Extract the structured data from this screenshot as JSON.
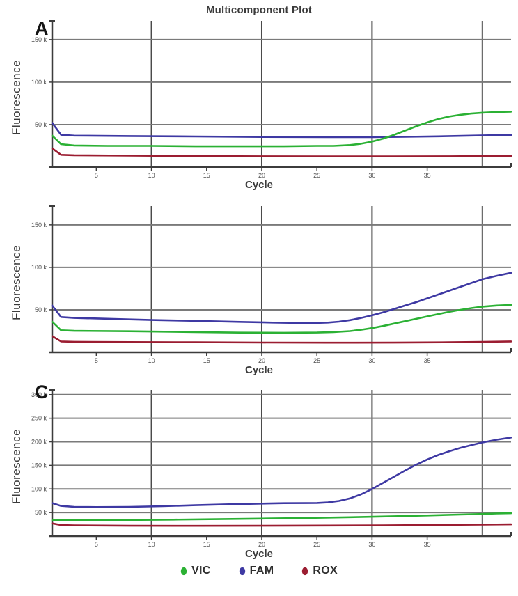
{
  "title": "Multicomponent Plot",
  "colors": {
    "vic": "#2bb134",
    "fam": "#3e39a3",
    "rox": "#9b1d31",
    "grid_h": "#7a7a7a",
    "grid_v": "#4a4a4a",
    "axis": "#3c3c3c",
    "tick_text": "#4e4e4e"
  },
  "panels": [
    {
      "letter": "A",
      "y_title": "Fluorescence",
      "x_title": "Cycle"
    },
    {
      "letter": "",
      "y_title": "Fluorescence",
      "x_title": "Cycle"
    },
    {
      "letter": "C",
      "y_title": "Fluorescence",
      "x_title": "Cycle"
    }
  ],
  "legend": {
    "items": [
      {
        "label": "VIC",
        "color_key": "vic"
      },
      {
        "label": "FAM",
        "color_key": "fam"
      },
      {
        "label": "ROX",
        "color_key": "rox"
      }
    ]
  },
  "chart_data": [
    {
      "type": "line",
      "panel": "A",
      "xlabel": "Cycle",
      "ylabel": "Fluorescence",
      "xlim": [
        1,
        42.6
      ],
      "ylim": [
        0,
        172
      ],
      "x_gridlines": [
        10,
        20,
        30,
        40
      ],
      "x_ticks": [
        {
          "v": 5,
          "label": "5"
        },
        {
          "v": 10,
          "label": "10"
        },
        {
          "v": 15,
          "label": "15"
        },
        {
          "v": 20,
          "label": "20"
        },
        {
          "v": 25,
          "label": "25"
        },
        {
          "v": 30,
          "label": "30"
        },
        {
          "v": 35,
          "label": "35"
        }
      ],
      "y_ticks": [
        {
          "v": 50,
          "label": "50 k"
        },
        {
          "v": 100,
          "label": "100 k"
        },
        {
          "v": 150,
          "label": "150 k"
        }
      ],
      "y_unit": "k (fluorescence units x1000)",
      "series": [
        {
          "name": "FAM",
          "color_key": "fam",
          "points": [
            [
              1,
              52
            ],
            [
              1.8,
              38
            ],
            [
              3,
              37
            ],
            [
              8,
              36.5
            ],
            [
              14,
              36
            ],
            [
              20,
              35.5
            ],
            [
              26,
              35.3
            ],
            [
              30,
              35.3
            ],
            [
              33,
              35.6
            ],
            [
              36,
              36.2
            ],
            [
              39,
              37
            ],
            [
              41,
              37.5
            ],
            [
              42.6,
              37.8
            ]
          ]
        },
        {
          "name": "ROX",
          "color_key": "rox",
          "points": [
            [
              1,
              22
            ],
            [
              1.8,
              14.5
            ],
            [
              3,
              14
            ],
            [
              8,
              13.5
            ],
            [
              14,
              13
            ],
            [
              20,
              12.8
            ],
            [
              26,
              12.6
            ],
            [
              32,
              12.6
            ],
            [
              37,
              12.8
            ],
            [
              40,
              13
            ],
            [
              42.6,
              13.2
            ]
          ]
        },
        {
          "name": "VIC",
          "color_key": "vic",
          "points": [
            [
              1,
              37
            ],
            [
              1.8,
              27
            ],
            [
              3,
              25.5
            ],
            [
              6,
              25
            ],
            [
              10,
              25
            ],
            [
              14,
              24.5
            ],
            [
              18,
              24.5
            ],
            [
              22,
              24.5
            ],
            [
              25,
              25
            ],
            [
              26.5,
              25
            ],
            [
              28,
              26
            ],
            [
              29,
              27.5
            ],
            [
              30,
              30
            ],
            [
              31,
              33.5
            ],
            [
              32,
              38
            ],
            [
              33,
              43
            ],
            [
              34,
              48
            ],
            [
              35,
              52.5
            ],
            [
              36,
              56.5
            ],
            [
              37,
              59.5
            ],
            [
              38,
              61.5
            ],
            [
              39,
              63
            ],
            [
              40,
              64
            ],
            [
              41.3,
              64.8
            ],
            [
              42.6,
              65.2
            ]
          ]
        }
      ]
    },
    {
      "type": "line",
      "panel": "B",
      "xlabel": "Cycle",
      "ylabel": "Fluorescence",
      "xlim": [
        1,
        42.6
      ],
      "ylim": [
        0,
        172
      ],
      "x_gridlines": [
        10,
        20,
        30,
        40
      ],
      "x_ticks": [
        {
          "v": 5,
          "label": "5"
        },
        {
          "v": 10,
          "label": "10"
        },
        {
          "v": 15,
          "label": "15"
        },
        {
          "v": 20,
          "label": "20"
        },
        {
          "v": 25,
          "label": "25"
        },
        {
          "v": 30,
          "label": "30"
        },
        {
          "v": 35,
          "label": "35"
        }
      ],
      "y_ticks": [
        {
          "v": 50,
          "label": "50 k"
        },
        {
          "v": 100,
          "label": "100 k"
        },
        {
          "v": 150,
          "label": "150 k"
        }
      ],
      "y_unit": "k (fluorescence units x1000)",
      "series": [
        {
          "name": "FAM",
          "color_key": "fam",
          "points": [
            [
              1,
              55
            ],
            [
              1.8,
              41.5
            ],
            [
              3,
              40.5
            ],
            [
              6,
              39.5
            ],
            [
              10,
              38
            ],
            [
              14,
              37
            ],
            [
              18,
              35.8
            ],
            [
              21,
              35
            ],
            [
              23,
              34.6
            ],
            [
              25,
              34.6
            ],
            [
              26,
              35
            ],
            [
              27,
              36
            ],
            [
              28,
              37.8
            ],
            [
              29,
              40.5
            ],
            [
              30,
              43.5
            ],
            [
              31,
              47
            ],
            [
              32,
              51
            ],
            [
              33,
              55
            ],
            [
              34,
              59
            ],
            [
              35,
              63.5
            ],
            [
              36,
              68
            ],
            [
              37,
              72.5
            ],
            [
              38,
              77
            ],
            [
              39,
              81.5
            ],
            [
              40,
              86
            ],
            [
              41.3,
              90
            ],
            [
              42.6,
              93.5
            ]
          ]
        },
        {
          "name": "ROX",
          "color_key": "rox",
          "points": [
            [
              1,
              19
            ],
            [
              1.8,
              12.8
            ],
            [
              3,
              12.4
            ],
            [
              8,
              12
            ],
            [
              14,
              11.8
            ],
            [
              20,
              11.5
            ],
            [
              26,
              11.3
            ],
            [
              32,
              11.4
            ],
            [
              37,
              11.8
            ],
            [
              40,
              12.3
            ],
            [
              42.6,
              12.8
            ]
          ]
        },
        {
          "name": "VIC",
          "color_key": "vic",
          "points": [
            [
              1,
              36
            ],
            [
              1.8,
              26
            ],
            [
              3,
              25.3
            ],
            [
              8,
              24.8
            ],
            [
              14,
              23.8
            ],
            [
              18,
              23.2
            ],
            [
              22,
              23
            ],
            [
              25,
              23.3
            ],
            [
              26.5,
              23.8
            ],
            [
              28,
              25
            ],
            [
              29,
              26.5
            ],
            [
              30,
              28.5
            ],
            [
              31,
              31
            ],
            [
              32,
              33.8
            ],
            [
              33,
              36.6
            ],
            [
              34,
              39.4
            ],
            [
              35,
              42.2
            ],
            [
              36,
              45
            ],
            [
              37,
              47.6
            ],
            [
              38,
              50
            ],
            [
              39,
              52
            ],
            [
              40,
              53.7
            ],
            [
              41.3,
              55
            ],
            [
              42.6,
              55.8
            ]
          ]
        }
      ]
    },
    {
      "type": "line",
      "panel": "C",
      "xlabel": "Cycle",
      "ylabel": "Fluorescence",
      "xlim": [
        1,
        42.6
      ],
      "ylim": [
        0,
        310
      ],
      "x_gridlines": [
        10,
        20,
        30,
        40
      ],
      "x_ticks": [
        {
          "v": 5,
          "label": "5"
        },
        {
          "v": 10,
          "label": "10"
        },
        {
          "v": 15,
          "label": "15"
        },
        {
          "v": 20,
          "label": "20"
        },
        {
          "v": 25,
          "label": "25"
        },
        {
          "v": 30,
          "label": "30"
        },
        {
          "v": 35,
          "label": "35"
        }
      ],
      "y_ticks": [
        {
          "v": 50,
          "label": "50 k"
        },
        {
          "v": 100,
          "label": "100 k"
        },
        {
          "v": 150,
          "label": "150 k"
        },
        {
          "v": 200,
          "label": "200 k"
        },
        {
          "v": 250,
          "label": "250 k"
        },
        {
          "v": 300,
          "label": "300 k"
        }
      ],
      "y_unit": "k (fluorescence units x1000)",
      "series": [
        {
          "name": "FAM",
          "color_key": "fam",
          "points": [
            [
              1,
              70
            ],
            [
              1.8,
              64
            ],
            [
              3,
              62
            ],
            [
              5,
              61.5
            ],
            [
              8,
              62
            ],
            [
              11,
              63.5
            ],
            [
              14,
              65.5
            ],
            [
              17,
              67.5
            ],
            [
              20,
              69
            ],
            [
              22,
              69.8
            ],
            [
              24,
              70
            ],
            [
              25,
              70.3
            ],
            [
              26,
              71.5
            ],
            [
              27,
              74.5
            ],
            [
              28,
              80
            ],
            [
              29,
              88.5
            ],
            [
              30,
              100
            ],
            [
              31,
              113
            ],
            [
              32,
              126
            ],
            [
              33,
              139
            ],
            [
              34,
              151.5
            ],
            [
              35,
              162.5
            ],
            [
              36,
              172
            ],
            [
              37,
              180
            ],
            [
              38,
              187
            ],
            [
              39,
              193
            ],
            [
              40,
              198.5
            ],
            [
              41.3,
              204.5
            ],
            [
              42.6,
              209
            ]
          ]
        },
        {
          "name": "ROX",
          "color_key": "rox",
          "points": [
            [
              1,
              27
            ],
            [
              1.8,
              23.5
            ],
            [
              3,
              22.8
            ],
            [
              8,
              22
            ],
            [
              14,
              21.8
            ],
            [
              20,
              22
            ],
            [
              26,
              22.4
            ],
            [
              31,
              22.9
            ],
            [
              35,
              23.4
            ],
            [
              38,
              24
            ],
            [
              40,
              24.4
            ],
            [
              42.6,
              25
            ]
          ]
        },
        {
          "name": "VIC",
          "color_key": "vic",
          "points": [
            [
              1,
              34
            ],
            [
              4,
              33.8
            ],
            [
              8,
              34.2
            ],
            [
              12,
              35
            ],
            [
              16,
              36
            ],
            [
              20,
              37.2
            ],
            [
              24,
              38.6
            ],
            [
              28,
              40.2
            ],
            [
              32,
              42.2
            ],
            [
              35,
              43.8
            ],
            [
              38,
              45.8
            ],
            [
              40,
              47
            ],
            [
              41.3,
              48
            ],
            [
              42.6,
              48.6
            ]
          ]
        }
      ]
    }
  ]
}
